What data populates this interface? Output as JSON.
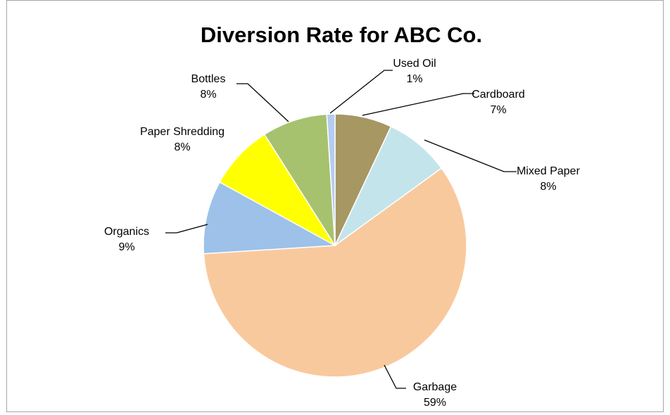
{
  "chart_data": {
    "type": "pie",
    "title": "Diversion Rate for ABC Co.",
    "slices": [
      {
        "label": "Cardboard",
        "value": 7,
        "value_label": "7%",
        "color": "#A69763"
      },
      {
        "label": "Mixed Paper",
        "value": 8,
        "value_label": "8%",
        "color": "#C4E4EC"
      },
      {
        "label": "Garbage",
        "value": 59,
        "value_label": "59%",
        "color": "#F9C99E"
      },
      {
        "label": "Organics",
        "value": 9,
        "value_label": "9%",
        "color": "#9DC1E8"
      },
      {
        "label": "Paper Shredding",
        "value": 8,
        "value_label": "8%",
        "color": "#FFFF00"
      },
      {
        "label": "Bottles",
        "value": 8,
        "value_label": "8%",
        "color": "#A6C26E"
      },
      {
        "label": "Used Oil",
        "value": 1,
        "value_label": "1%",
        "color": "#B5CCF2"
      }
    ],
    "legend": "none",
    "data_labels": "outside with leader lines"
  }
}
